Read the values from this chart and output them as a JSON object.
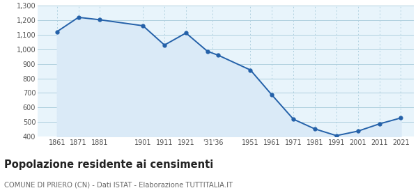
{
  "years": [
    1861,
    1871,
    1881,
    1901,
    1911,
    1921,
    1931,
    1936,
    1951,
    1961,
    1971,
    1981,
    1991,
    2001,
    2011,
    2021
  ],
  "population": [
    1122,
    1221,
    1204,
    1163,
    1030,
    1113,
    987,
    960,
    858,
    686,
    519,
    452,
    406,
    437,
    487,
    528
  ],
  "line_color": "#2461a9",
  "fill_color": "#daeaf7",
  "marker_color": "#2461a9",
  "background_color": "#e8f4fb",
  "grid_color": "#aecfde",
  "title": "Popolazione residente ai censimenti",
  "subtitle": "COMUNE DI PRIERO (CN) - Dati ISTAT - Elaborazione TUTTITALIA.IT",
  "ylim": [
    400,
    1300
  ],
  "yticks": [
    400,
    500,
    600,
    700,
    800,
    900,
    1000,
    1100,
    1200,
    1300
  ],
  "tick_positions": [
    1861,
    1871,
    1881,
    1901,
    1911,
    1921,
    1933.5,
    1951,
    1961,
    1971,
    1981,
    1991,
    2001,
    2011,
    2021
  ],
  "tick_labels": [
    "1861",
    "1871",
    "1881",
    "1901",
    "1911",
    "1921",
    "'31'36",
    "1951",
    "1961",
    "1971",
    "1981",
    "1991",
    "2001",
    "2011",
    "2021"
  ],
  "xlim": [
    1852,
    2027
  ]
}
